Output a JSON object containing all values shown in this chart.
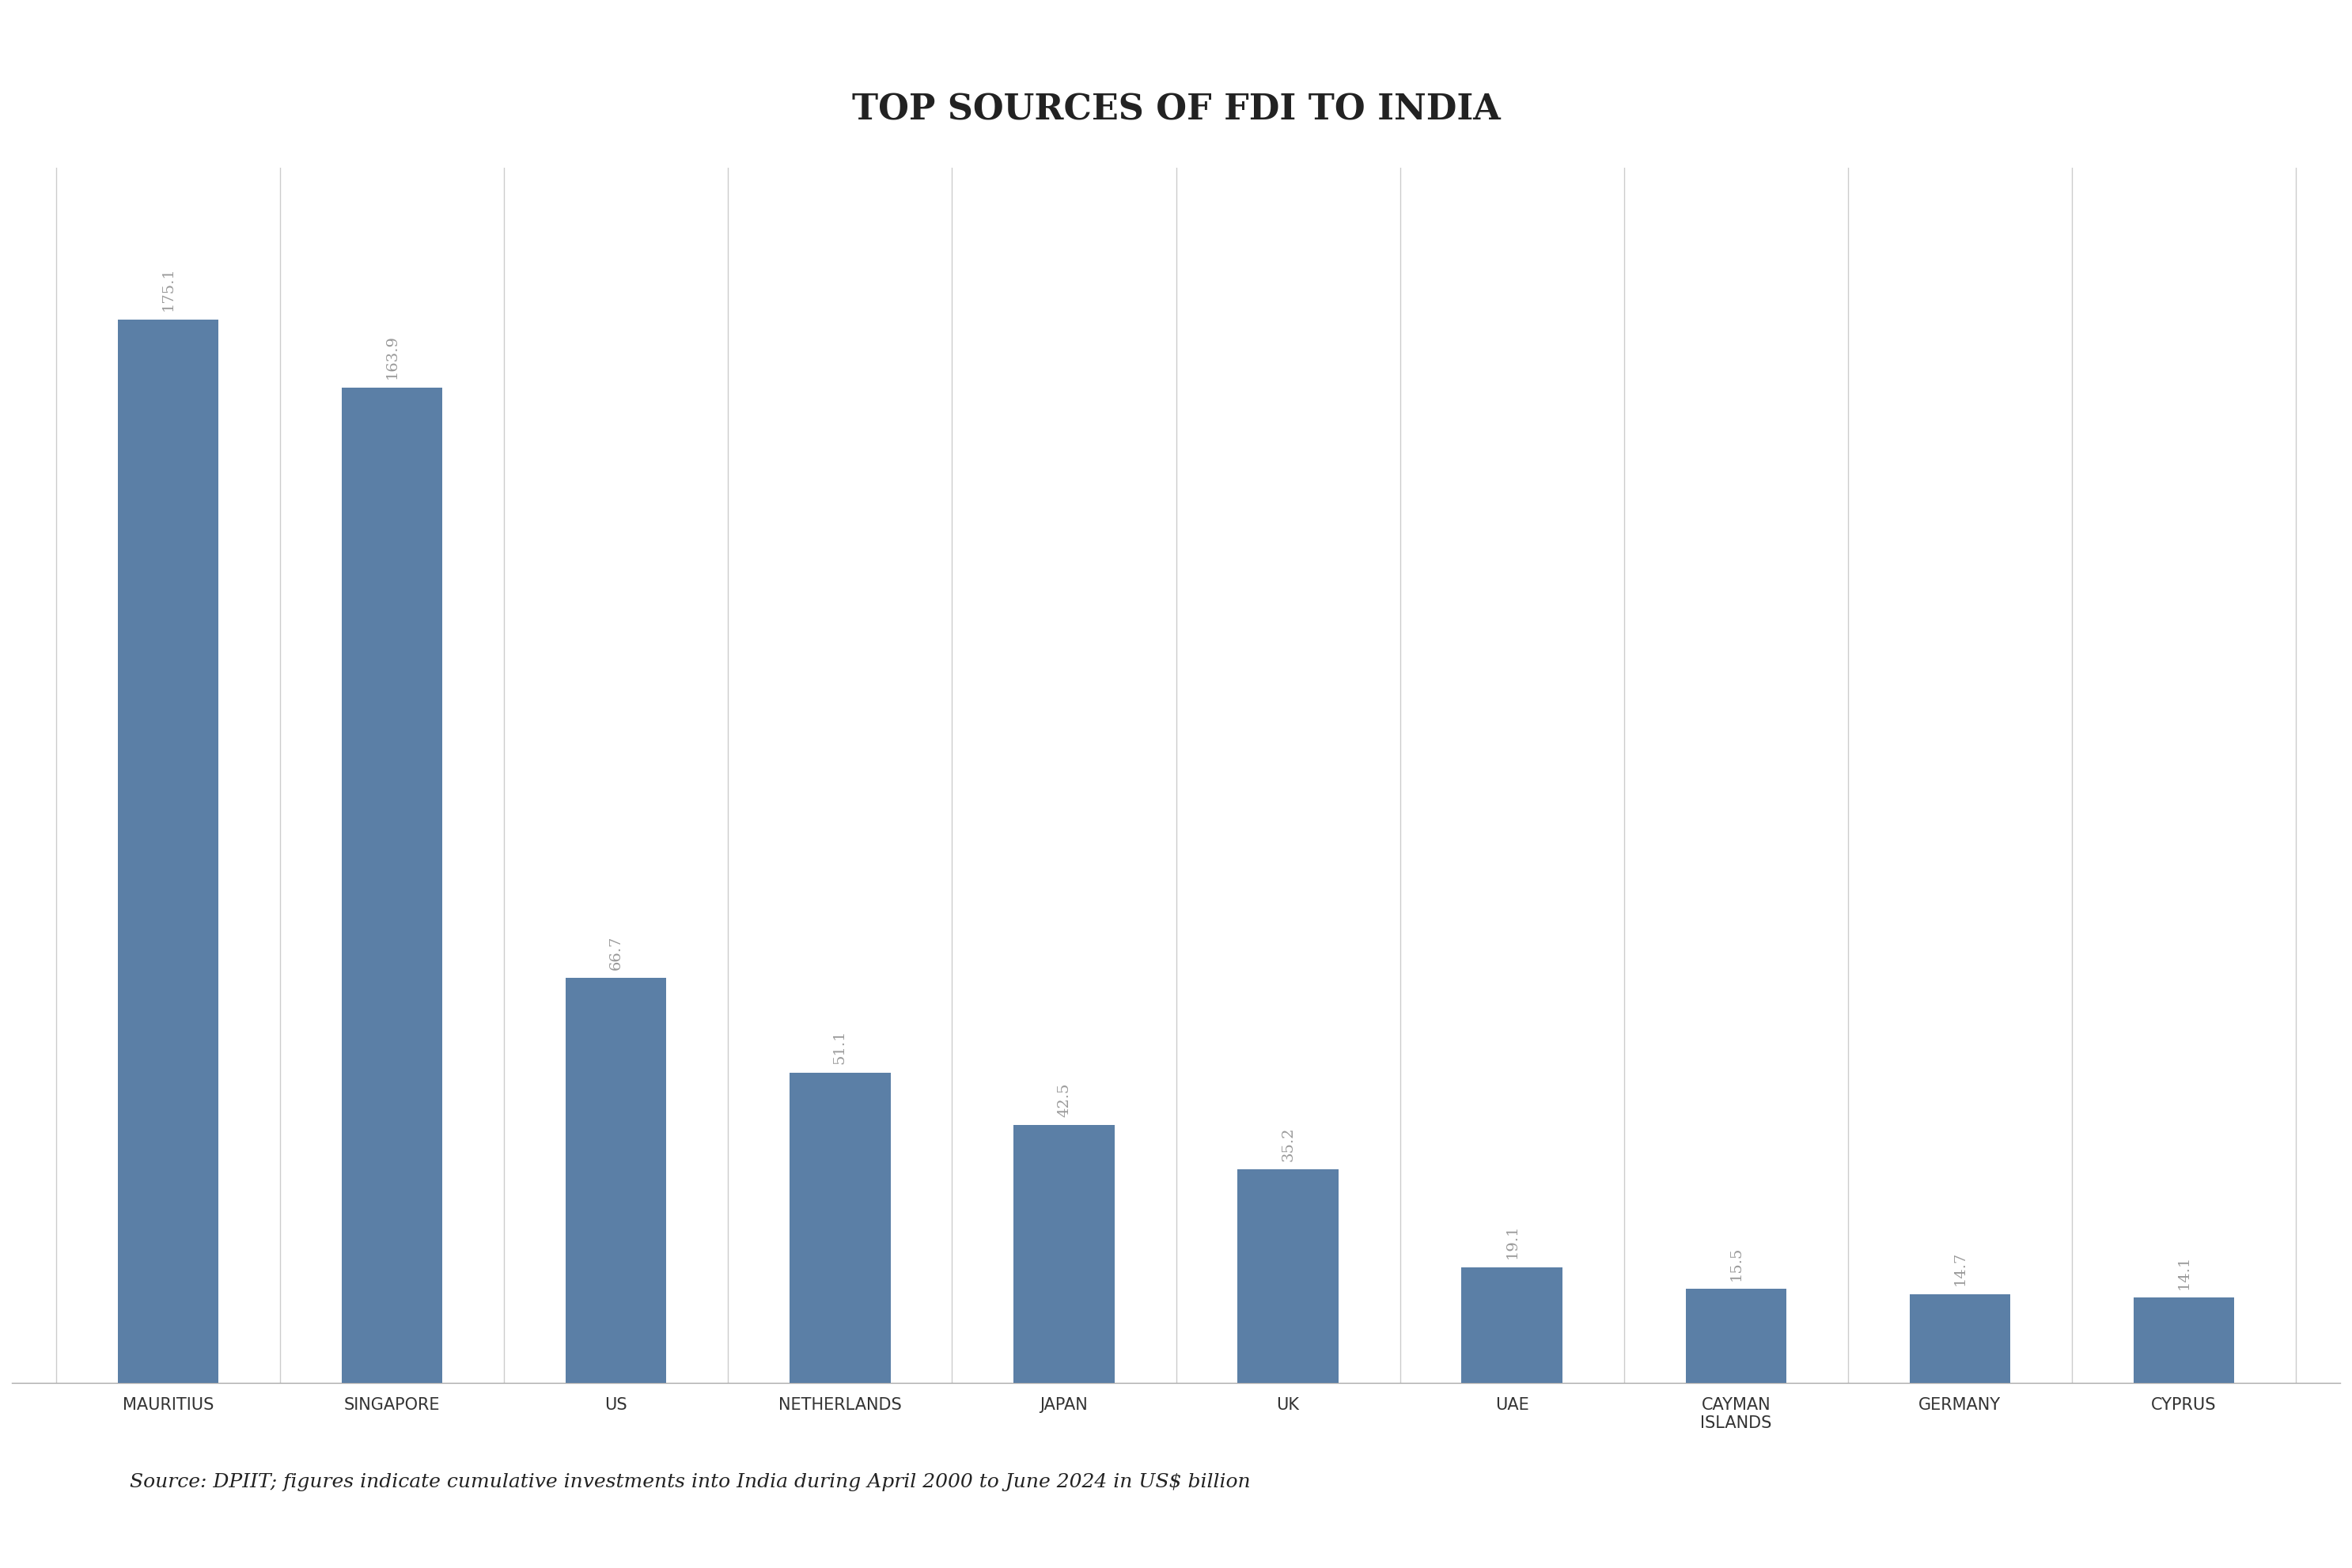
{
  "title": "TOP SOURCES OF FDI TO INDIA",
  "categories": [
    "MAURITIUS",
    "SINGAPORE",
    "US",
    "NETHERLANDS",
    "JAPAN",
    "UK",
    "UAE",
    "CAYMAN\nISLANDS",
    "GERMANY",
    "CYPRUS"
  ],
  "values": [
    175.1,
    163.9,
    66.7,
    51.1,
    42.5,
    35.2,
    19.1,
    15.5,
    14.7,
    14.1
  ],
  "bar_color": "#5b7fa6",
  "background_color": "#ffffff",
  "title_fontsize": 32,
  "label_fontsize": 15,
  "value_fontsize": 14,
  "source_text": "Source: DPIIT; figures indicate cumulative investments into India during April 2000 to June 2024 in US$ billion",
  "source_fontsize": 18,
  "ylim": [
    0,
    200
  ],
  "grid_color": "#cccccc"
}
